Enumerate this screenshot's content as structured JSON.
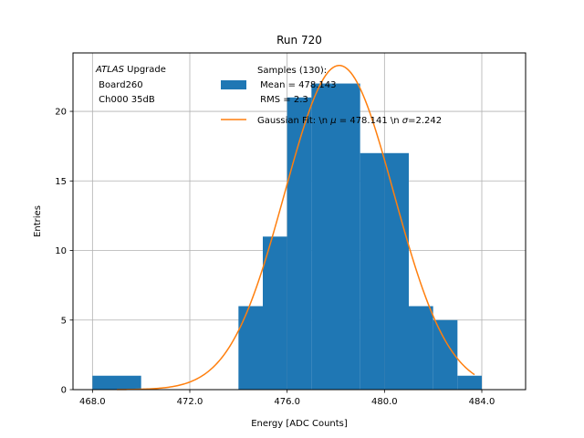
{
  "chart_data": {
    "type": "bar",
    "title": "Run 720",
    "xlabel": "Energy [ADC Counts]",
    "ylabel": "Entries",
    "xlim": [
      467.2,
      485.8
    ],
    "ylim": [
      0,
      24.2
    ],
    "x_ticks": [
      468.0,
      472.0,
      476.0,
      480.0,
      484.0
    ],
    "x_tick_labels": [
      "468.0",
      "472.0",
      "476.0",
      "480.0",
      "484.0"
    ],
    "y_ticks": [
      0,
      5,
      10,
      15,
      20
    ],
    "y_tick_labels": [
      "0",
      "5",
      "10",
      "15",
      "20"
    ],
    "grid": true,
    "annotation": {
      "lines": [
        "ATLAS Upgrade",
        " Board260",
        " Ch000 35dB"
      ],
      "italic_word": "ATLAS",
      "rest_of_first_line": " Upgrade"
    },
    "histogram": {
      "name": "Samples (130):",
      "label_lines": [
        "Samples (130):",
        " Mean = 478.143",
        " RMS = 2.3"
      ],
      "color": "#1f77b4",
      "bins": [
        {
          "x0": 468,
          "x1": 470,
          "count": 1
        },
        {
          "x0": 470,
          "x1": 472,
          "count": 0
        },
        {
          "x0": 472,
          "x1": 474,
          "count": 0
        },
        {
          "x0": 474,
          "x1": 475,
          "count": 6
        },
        {
          "x0": 475,
          "x1": 476,
          "count": 11
        },
        {
          "x0": 476,
          "x1": 477,
          "count": 21
        },
        {
          "x0": 477,
          "x1": 478,
          "count": 22
        },
        {
          "x0": 478,
          "x1": 479,
          "count": 22
        },
        {
          "x0": 479,
          "x1": 480,
          "count": 17
        },
        {
          "x0": 480,
          "x1": 481,
          "count": 17
        },
        {
          "x0": 481,
          "x1": 482,
          "count": 6
        },
        {
          "x0": 482,
          "x1": 483,
          "count": 5
        },
        {
          "x0": 483,
          "x1": 484,
          "count": 1
        }
      ]
    },
    "fit": {
      "type": "line",
      "name": "Gaussian Fit: \\n μ = 478.141 \\n σ=2.242",
      "label_parts": [
        "Gaussian Fit: \\n ",
        "μ",
        " = 478.141 \\n ",
        "σ",
        "=2.242"
      ],
      "color": "#ff7f0e",
      "mu": 478.141,
      "sigma": 2.242,
      "amplitude": 23.3,
      "x_range": [
        469.0,
        483.7
      ]
    },
    "legend_position": "top-right"
  }
}
